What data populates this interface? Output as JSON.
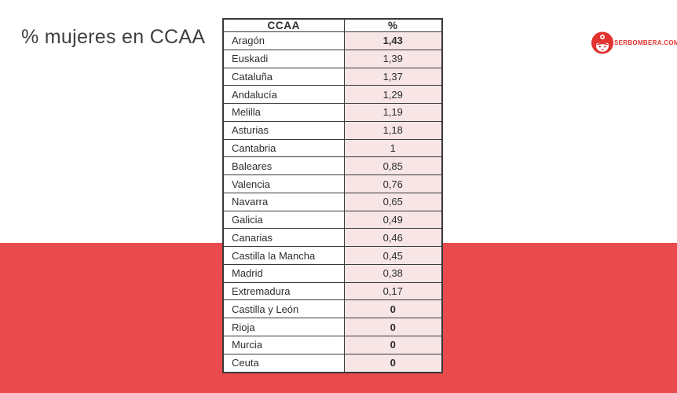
{
  "title": "% mujeres en CCAA",
  "logo": {
    "icon": "firefighter-icon",
    "text": "SERBOMBERA.COM"
  },
  "table": {
    "headers": [
      "CCAA",
      "%"
    ],
    "rows": [
      {
        "name": "Aragón",
        "value": "1,43",
        "bold": true
      },
      {
        "name": "Euskadi",
        "value": "1,39",
        "bold": false
      },
      {
        "name": "Cataluña",
        "value": "1,37",
        "bold": false
      },
      {
        "name": "Andalucía",
        "value": "1,29",
        "bold": false
      },
      {
        "name": "Melilla",
        "value": "1,19",
        "bold": false
      },
      {
        "name": "Asturias",
        "value": "1,18",
        "bold": false
      },
      {
        "name": "Cantabria",
        "value": "1",
        "bold": false
      },
      {
        "name": "Baleares",
        "value": "0,85",
        "bold": false
      },
      {
        "name": "Valencia",
        "value": "0,76",
        "bold": false
      },
      {
        "name": "Navarra",
        "value": "0,65",
        "bold": false
      },
      {
        "name": "Galicia",
        "value": "0,49",
        "bold": false
      },
      {
        "name": "Canarias",
        "value": "0,46",
        "bold": false
      },
      {
        "name": "Castilla la Mancha",
        "value": "0,45",
        "bold": false
      },
      {
        "name": "Madrid",
        "value": "0,38",
        "bold": false
      },
      {
        "name": "Extremadura",
        "value": "0,17",
        "bold": false
      },
      {
        "name": "Castilla y León",
        "value": "0",
        "bold": true
      },
      {
        "name": "Rioja",
        "value": "0",
        "bold": true
      },
      {
        "name": "Murcia",
        "value": "0",
        "bold": true
      },
      {
        "name": "Ceuta",
        "value": "0",
        "bold": true
      }
    ]
  },
  "colors": {
    "band_red": "#E94A4D",
    "cell_pink": "#F8E6E6",
    "logo_red": "#E0322F",
    "border_dark": "#3A3A3A"
  },
  "chart_data": {
    "type": "table",
    "title": "% mujeres en CCAA",
    "columns": [
      "CCAA",
      "%"
    ],
    "rows": [
      [
        "Aragón",
        1.43
      ],
      [
        "Euskadi",
        1.39
      ],
      [
        "Cataluña",
        1.37
      ],
      [
        "Andalucía",
        1.29
      ],
      [
        "Melilla",
        1.19
      ],
      [
        "Asturias",
        1.18
      ],
      [
        "Cantabria",
        1
      ],
      [
        "Baleares",
        0.85
      ],
      [
        "Valencia",
        0.76
      ],
      [
        "Navarra",
        0.65
      ],
      [
        "Galicia",
        0.49
      ],
      [
        "Canarias",
        0.46
      ],
      [
        "Castilla la Mancha",
        0.45
      ],
      [
        "Madrid",
        0.38
      ],
      [
        "Extremadura",
        0.17
      ],
      [
        "Castilla y León",
        0
      ],
      [
        "Rioja",
        0
      ],
      [
        "Murcia",
        0
      ],
      [
        "Ceuta",
        0
      ]
    ]
  }
}
